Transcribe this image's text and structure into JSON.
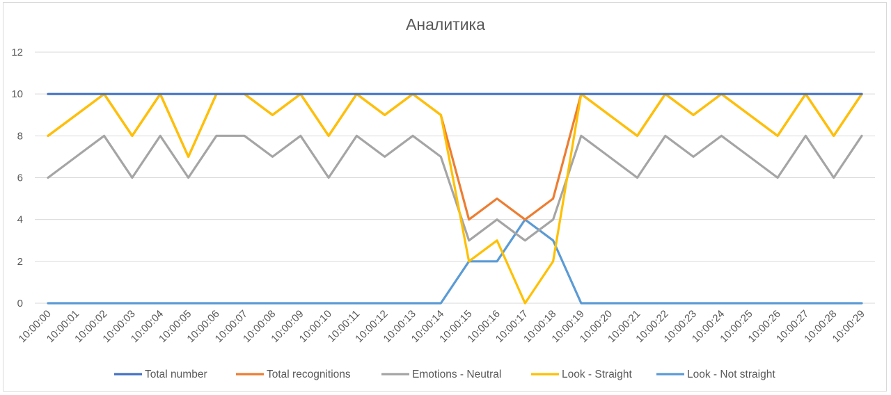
{
  "chart_data": {
    "type": "line",
    "title": "Аналитика",
    "xlabel": "",
    "ylabel": "",
    "ylim": [
      0,
      12
    ],
    "yticks": [
      "0",
      "2",
      "4",
      "6",
      "8",
      "10",
      "12"
    ],
    "grid": true,
    "legend_position": "bottom",
    "categories": [
      "10:00:00",
      "10:00:01",
      "10:00:02",
      "10:00:03",
      "10:00:04",
      "10:00:05",
      "10:00:06",
      "10:00:07",
      "10:00:08",
      "10:00:09",
      "10:00:10",
      "10:00:11",
      "10:00:12",
      "10:00:13",
      "10:00:14",
      "10:00:15",
      "10:00:16",
      "10:00:17",
      "10:00:18",
      "10:00:19",
      "10:00:20",
      "10:00:21",
      "10:00:22",
      "10:00:23",
      "10:00:24",
      "10:00:25",
      "10:00:26",
      "10:00:27",
      "10:00:28",
      "10:00:29"
    ],
    "series": [
      {
        "name": "Total number",
        "color": "#4472c4",
        "values": [
          10,
          10,
          10,
          10,
          10,
          10,
          10,
          10,
          10,
          10,
          10,
          10,
          10,
          10,
          10,
          10,
          10,
          10,
          10,
          10,
          10,
          10,
          10,
          10,
          10,
          10,
          10,
          10,
          10,
          10
        ]
      },
      {
        "name": "Total recognitions",
        "color": "#ed7d31",
        "values": [
          8,
          9,
          10,
          8,
          10,
          7,
          10,
          10,
          9,
          10,
          8,
          10,
          9,
          10,
          9,
          4,
          5,
          4,
          5,
          10,
          9,
          8,
          10,
          9,
          10,
          9,
          8,
          10,
          8,
          10
        ]
      },
      {
        "name": "Emotions - Neutral",
        "color": "#a5a5a5",
        "values": [
          6,
          7,
          8,
          6,
          8,
          6,
          8,
          8,
          7,
          8,
          6,
          8,
          7,
          8,
          7,
          3,
          4,
          3,
          4,
          8,
          7,
          6,
          8,
          7,
          8,
          7,
          6,
          8,
          6,
          8
        ]
      },
      {
        "name": "Look - Straight",
        "color": "#ffc000",
        "values": [
          8,
          9,
          10,
          8,
          10,
          7,
          10,
          10,
          9,
          10,
          8,
          10,
          9,
          10,
          9,
          2,
          3,
          0,
          2,
          10,
          9,
          8,
          10,
          9,
          10,
          9,
          8,
          10,
          8,
          10
        ]
      },
      {
        "name": "Look - Not straight",
        "color": "#5b9bd5",
        "values": [
          0,
          0,
          0,
          0,
          0,
          0,
          0,
          0,
          0,
          0,
          0,
          0,
          0,
          0,
          0,
          2,
          2,
          4,
          3,
          0,
          0,
          0,
          0,
          0,
          0,
          0,
          0,
          0,
          0,
          0
        ]
      }
    ]
  }
}
